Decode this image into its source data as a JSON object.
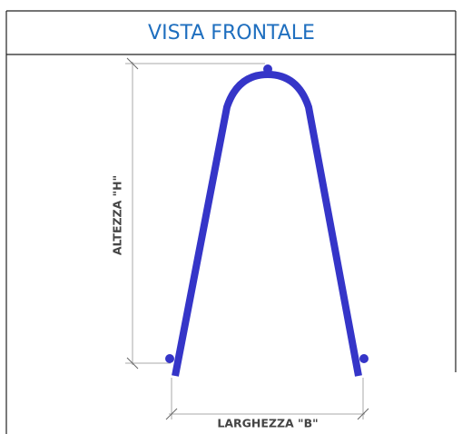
{
  "header": {
    "title": "VISTA FRONTALE"
  },
  "diagram": {
    "height_label": "ALTEZZA \"H\"",
    "width_label": "LARGHEZZA \"B\""
  }
}
